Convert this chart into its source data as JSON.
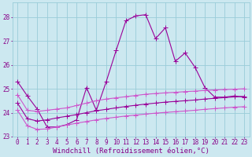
{
  "xlabel": "Windchill (Refroidissement éolien,°C)",
  "xlim": [
    -0.5,
    23.5
  ],
  "ylim": [
    23.0,
    28.6
  ],
  "yticks": [
    23,
    24,
    25,
    26,
    27,
    28
  ],
  "xticks": [
    0,
    1,
    2,
    3,
    4,
    5,
    6,
    7,
    8,
    9,
    10,
    11,
    12,
    13,
    14,
    15,
    16,
    17,
    18,
    19,
    20,
    21,
    22,
    23
  ],
  "bg_color": "#cce8f0",
  "grid_color": "#99ccd9",
  "line_color1": "#990099",
  "line_color2": "#cc55cc",
  "series1_x": [
    0,
    1,
    2,
    3,
    4,
    5,
    6,
    7,
    8,
    9,
    10,
    11,
    12,
    13,
    14,
    15,
    16,
    17,
    18,
    19,
    20,
    21,
    22,
    23
  ],
  "series1_y": [
    25.3,
    24.7,
    24.15,
    23.4,
    23.4,
    23.5,
    23.7,
    25.05,
    24.1,
    25.3,
    26.6,
    27.85,
    28.05,
    28.1,
    27.1,
    27.55,
    26.15,
    26.5,
    25.9,
    25.05,
    24.65,
    24.65,
    24.7,
    24.65
  ],
  "series2_x": [
    0,
    1,
    2,
    3,
    4,
    5,
    6,
    7,
    8,
    9,
    10,
    11,
    12,
    13,
    14,
    15,
    16,
    17,
    18,
    19,
    20,
    21,
    22,
    23
  ],
  "series2_y": [
    24.75,
    24.1,
    24.05,
    24.1,
    24.15,
    24.2,
    24.3,
    24.4,
    24.5,
    24.57,
    24.62,
    24.67,
    24.72,
    24.77,
    24.8,
    24.83,
    24.85,
    24.88,
    24.9,
    24.93,
    24.95,
    24.97,
    24.98,
    25.0
  ],
  "series3_x": [
    0,
    1,
    2,
    3,
    4,
    5,
    6,
    7,
    8,
    9,
    10,
    11,
    12,
    13,
    14,
    15,
    16,
    17,
    18,
    19,
    20,
    21,
    22,
    23
  ],
  "series3_y": [
    24.4,
    23.75,
    23.65,
    23.7,
    23.78,
    23.85,
    23.92,
    24.0,
    24.08,
    24.14,
    24.2,
    24.26,
    24.31,
    24.36,
    24.4,
    24.44,
    24.47,
    24.5,
    24.53,
    24.57,
    24.6,
    24.63,
    24.66,
    24.68
  ],
  "series4_x": [
    0,
    1,
    2,
    3,
    4,
    5,
    6,
    7,
    8,
    9,
    10,
    11,
    12,
    13,
    14,
    15,
    16,
    17,
    18,
    19,
    20,
    21,
    22,
    23
  ],
  "series4_y": [
    24.1,
    23.45,
    23.3,
    23.32,
    23.4,
    23.48,
    23.56,
    23.63,
    23.7,
    23.76,
    23.81,
    23.86,
    23.9,
    23.94,
    23.98,
    24.01,
    24.04,
    24.07,
    24.1,
    24.14,
    24.17,
    24.2,
    24.23,
    24.25
  ],
  "font_color": "#880088",
  "tick_fontsize": 5.5,
  "label_fontsize": 6.5,
  "markersize": 2.0,
  "linewidth": 0.8
}
